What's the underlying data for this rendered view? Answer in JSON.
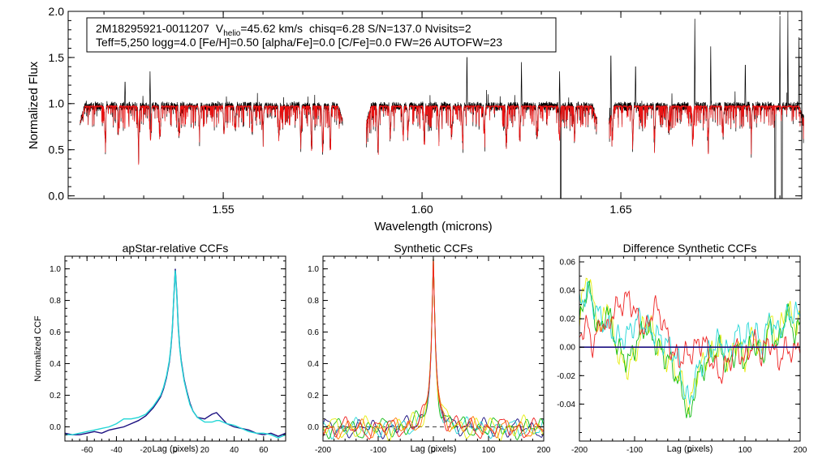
{
  "colors": {
    "axis": "#000000",
    "observed": "#000000",
    "model": "#ee1111",
    "ccf_navy": "#1a0f80",
    "ccf_cyan": "#22d6d6",
    "ccf_green": "#11bb11",
    "ccf_yellow": "#e6ee11",
    "ccf_orange": "#ff7a00",
    "ccf_red": "#ee2222",
    "zero_line": "#444444"
  },
  "spectrum": {
    "info_line1_parts": {
      "star_id": "2M18295921-0011207",
      "vhelio_label": "V",
      "vhelio_sub": "helio",
      "vhelio_value": "=45.62 km/s",
      "rest": "chisq=6.28  S/N=137.0  Nvisits=2"
    },
    "info_line2": "Teff=5,250 logg=4.0 [Fe/H]=0.50 [alpha/Fe]=0.0 [C/Fe]=0.0 FW=26 AUTOFW=23"
  },
  "chart_data": [
    {
      "id": "spectrum",
      "type": "line",
      "title": "",
      "xlabel": "Wavelength (microns)",
      "ylabel": "Normalized Flux",
      "xlim": [
        1.511,
        1.6955
      ],
      "ylim": [
        -0.03,
        2.0
      ],
      "xticks": [
        1.55,
        1.6,
        1.65
      ],
      "xtick_labels": [
        "1.55",
        "1.60",
        "1.65"
      ],
      "yticks": [
        0.0,
        0.5,
        1.0,
        1.5,
        2.0
      ],
      "ytick_labels": [
        "0.0",
        "0.5",
        "1.0",
        "1.5",
        "2.0"
      ],
      "chips": [
        [
          1.514,
          1.58
        ],
        [
          1.586,
          1.644
        ],
        [
          1.647,
          1.696
        ]
      ],
      "series": [
        {
          "name": "observed spectrum",
          "color": "#000000",
          "baseline": 0.95
        },
        {
          "name": "best-fit model",
          "color": "#ee1111",
          "baseline": 0.95
        }
      ],
      "absorption_lines": [
        [
          1.5203,
          0.62
        ],
        [
          1.5236,
          0.75
        ],
        [
          1.5287,
          0.55
        ],
        [
          1.5317,
          0.6
        ],
        [
          1.5341,
          0.68
        ],
        [
          1.5389,
          0.64
        ],
        [
          1.544,
          0.7
        ],
        [
          1.5502,
          0.66
        ],
        [
          1.553,
          0.72
        ],
        [
          1.5573,
          0.68
        ],
        [
          1.56,
          0.73
        ],
        [
          1.564,
          0.65
        ],
        [
          1.5695,
          0.6
        ],
        [
          1.5722,
          0.5
        ],
        [
          1.575,
          0.48
        ],
        [
          1.5769,
          0.5
        ],
        [
          1.5889,
          0.5
        ],
        [
          1.592,
          0.65
        ],
        [
          1.5952,
          0.65
        ],
        [
          1.5965,
          0.7
        ],
        [
          1.6006,
          0.62
        ],
        [
          1.6042,
          0.7
        ],
        [
          1.6075,
          0.66
        ],
        [
          1.6102,
          0.6
        ],
        [
          1.6157,
          0.68
        ],
        [
          1.6212,
          0.6
        ],
        [
          1.6246,
          0.68
        ],
        [
          1.6289,
          0.63
        ],
        [
          1.6346,
          0.61
        ],
        [
          1.6384,
          0.64
        ],
        [
          1.6479,
          0.68
        ],
        [
          1.653,
          0.6
        ],
        [
          1.6585,
          0.62
        ],
        [
          1.662,
          0.7
        ],
        [
          1.6681,
          0.62
        ],
        [
          1.672,
          0.6
        ],
        [
          1.6757,
          0.64
        ],
        [
          1.6828,
          0.66
        ]
      ],
      "emission_spikes": [
        [
          1.5253,
          1.28
        ],
        [
          1.5316,
          1.35
        ],
        [
          1.6113,
          1.6
        ],
        [
          1.625,
          1.45
        ],
        [
          1.6346,
          1.35
        ],
        [
          1.6475,
          1.62
        ],
        [
          1.6537,
          1.48
        ],
        [
          1.6686,
          1.92
        ],
        [
          1.6726,
          1.62
        ],
        [
          1.6813,
          1.5
        ],
        [
          1.69,
          1.95
        ],
        [
          1.692,
          2.0
        ],
        [
          1.6948,
          1.72
        ]
      ],
      "dropouts": [
        [
          1.6349,
          -0.05
        ],
        [
          1.6888,
          -0.05
        ],
        [
          1.6905,
          -0.05
        ]
      ]
    },
    {
      "id": "apstar_ccf",
      "type": "line",
      "title": "apStar-relative CCFs",
      "xlabel": "Lag (pixels)",
      "ylabel": "Normalized CCF",
      "xlim": [
        -75,
        75
      ],
      "ylim": [
        -0.09,
        1.08
      ],
      "xticks": [
        -60,
        -40,
        -20,
        0,
        20,
        40,
        60
      ],
      "xtick_labels": [
        "-60",
        "-40",
        "-20",
        "0",
        "20",
        "40",
        "60"
      ],
      "yticks": [
        0.0,
        0.2,
        0.4,
        0.6,
        0.8,
        1.0
      ],
      "ytick_labels": [
        "0.0",
        "0.2",
        "0.4",
        "0.6",
        "0.8",
        "1.0"
      ],
      "series": [
        {
          "name": "visit 1",
          "color": "#1a0f80",
          "x": [
            -75,
            -70,
            -65,
            -60,
            -55,
            -50,
            -45,
            -40,
            -35,
            -30,
            -25,
            -20,
            -15,
            -12,
            -10,
            -8,
            -6,
            -4,
            -3,
            -2,
            -1,
            0,
            1,
            2,
            3,
            4,
            6,
            8,
            10,
            12,
            15,
            20,
            25,
            28,
            30,
            35,
            40,
            45,
            50,
            55,
            60,
            65,
            70,
            75
          ],
          "y": [
            -0.04,
            -0.05,
            -0.05,
            -0.04,
            -0.03,
            -0.04,
            -0.02,
            -0.01,
            0.0,
            0.02,
            0.04,
            0.07,
            0.12,
            0.16,
            0.19,
            0.24,
            0.31,
            0.41,
            0.5,
            0.62,
            0.82,
            1.0,
            0.85,
            0.64,
            0.51,
            0.42,
            0.3,
            0.22,
            0.15,
            0.1,
            0.06,
            0.05,
            0.08,
            0.09,
            0.07,
            0.02,
            0.0,
            -0.01,
            -0.02,
            -0.04,
            -0.05,
            -0.04,
            -0.06,
            -0.04
          ]
        },
        {
          "name": "visit 2",
          "color": "#22d6d6",
          "x": [
            -75,
            -70,
            -65,
            -60,
            -55,
            -50,
            -45,
            -40,
            -35,
            -30,
            -25,
            -20,
            -15,
            -12,
            -10,
            -8,
            -6,
            -4,
            -3,
            -2,
            -1,
            0,
            1,
            2,
            3,
            4,
            6,
            8,
            10,
            12,
            15,
            20,
            25,
            28,
            30,
            35,
            40,
            45,
            50,
            55,
            60,
            65,
            70,
            75
          ],
          "y": [
            -0.05,
            -0.05,
            -0.04,
            -0.03,
            -0.02,
            -0.01,
            0.0,
            0.02,
            0.05,
            0.05,
            0.06,
            0.08,
            0.13,
            0.17,
            0.2,
            0.25,
            0.32,
            0.42,
            0.51,
            0.63,
            0.82,
            0.99,
            0.84,
            0.63,
            0.5,
            0.41,
            0.29,
            0.21,
            0.14,
            0.1,
            0.06,
            0.03,
            0.03,
            0.04,
            0.04,
            0.02,
            0.01,
            -0.01,
            -0.03,
            -0.04,
            -0.04,
            -0.05,
            -0.07,
            -0.05
          ]
        }
      ]
    },
    {
      "id": "synthetic_ccf",
      "type": "line",
      "title": "Synthetic CCFs",
      "xlabel": "Lag (pixels)",
      "ylabel": "",
      "xlim": [
        -200,
        200
      ],
      "ylim": [
        -0.09,
        1.08
      ],
      "xticks": [
        -200,
        -100,
        0,
        100,
        200
      ],
      "xtick_labels": [
        "-200",
        "-100",
        "0",
        "100",
        "200"
      ],
      "yticks": [
        0.0,
        0.2,
        0.4,
        0.6,
        0.8,
        1.0
      ],
      "ytick_labels": [
        "0.0",
        "0.2",
        "0.4",
        "0.6",
        "0.8",
        "1.0"
      ],
      "zero_line": 0.0,
      "series": [
        {
          "name": "navy",
          "color": "#1a0f80",
          "phase": 0.0,
          "amp": 0.035
        },
        {
          "name": "cyan",
          "color": "#22d6d6",
          "phase": 1.1,
          "amp": 0.035
        },
        {
          "name": "green",
          "color": "#11bb11",
          "phase": 2.3,
          "amp": 0.04
        },
        {
          "name": "yellow",
          "color": "#e6ee11",
          "phase": 3.4,
          "amp": 0.045
        },
        {
          "name": "orange",
          "color": "#ff7a00",
          "phase": 4.6,
          "amp": 0.035
        },
        {
          "name": "red",
          "color": "#ee2222",
          "phase": 5.5,
          "amp": 0.04
        }
      ]
    },
    {
      "id": "difference_ccf",
      "type": "line",
      "title": "Difference Synthetic CCFs",
      "xlabel": "Lag (pixels)",
      "ylabel": "",
      "xlim": [
        -200,
        200
      ],
      "ylim": [
        -0.066,
        0.064
      ],
      "xticks": [
        -200,
        -100,
        0,
        100,
        200
      ],
      "xtick_labels": [
        "-200",
        "-100",
        "0",
        "100",
        "200"
      ],
      "yticks": [
        -0.04,
        -0.02,
        0.0,
        0.02,
        0.04,
        0.06
      ],
      "ytick_labels": [
        "-0.04",
        "-0.02",
        "0.00",
        "0.02",
        "0.04",
        "0.06"
      ],
      "zero_line": 0.0,
      "series": [
        {
          "name": "yellow",
          "color": "#e6ee11",
          "phase": 0.4,
          "x": [
            -200,
            -185,
            -175,
            -160,
            -150,
            -140,
            -125,
            -110,
            -95,
            -80,
            -65,
            -50,
            -35,
            -20,
            -10,
            0,
            10,
            25,
            40,
            55,
            70,
            85,
            100,
            115,
            130,
            145,
            160,
            175,
            190,
            200
          ],
          "y": [
            0.02,
            0.055,
            0.03,
            0.01,
            0.035,
            0.01,
            -0.01,
            -0.015,
            0.0,
            0.02,
            0.01,
            -0.005,
            -0.01,
            -0.02,
            -0.03,
            -0.045,
            -0.02,
            -0.01,
            -0.005,
            0.0,
            -0.01,
            0.005,
            -0.01,
            0.01,
            -0.005,
            0.02,
            0.005,
            0.03,
            0.015,
            0.02
          ]
        },
        {
          "name": "green",
          "color": "#11bb11",
          "phase": 1.6,
          "x": [
            -200,
            -185,
            -175,
            -160,
            -150,
            -140,
            -125,
            -110,
            -95,
            -80,
            -65,
            -50,
            -35,
            -20,
            -10,
            0,
            10,
            25,
            40,
            55,
            70,
            85,
            100,
            115,
            130,
            145,
            160,
            175,
            190,
            200
          ],
          "y": [
            0.015,
            0.045,
            0.025,
            0.01,
            0.03,
            0.01,
            -0.005,
            -0.01,
            0.005,
            0.015,
            0.005,
            -0.005,
            -0.01,
            -0.025,
            -0.035,
            -0.055,
            -0.025,
            -0.015,
            -0.005,
            0.0,
            -0.015,
            0.0,
            -0.01,
            0.005,
            -0.01,
            0.015,
            0.0,
            0.025,
            0.01,
            0.015
          ]
        },
        {
          "name": "cyan",
          "color": "#22d6d6",
          "phase": 2.7,
          "x": [
            -200,
            -185,
            -175,
            -160,
            -150,
            -140,
            -125,
            -110,
            -95,
            -80,
            -65,
            -50,
            -35,
            -20,
            -10,
            0,
            10,
            25,
            40,
            55,
            70,
            85,
            100,
            115,
            130,
            145,
            160,
            175,
            190,
            200
          ],
          "y": [
            0.03,
            0.04,
            0.03,
            0.02,
            0.015,
            0.01,
            0.005,
            0.01,
            0.02,
            0.015,
            0.01,
            0.005,
            0.0,
            -0.01,
            -0.03,
            -0.04,
            -0.02,
            -0.01,
            0.0,
            0.005,
            -0.005,
            0.01,
            0.005,
            0.015,
            0.0,
            0.02,
            0.01,
            0.02,
            0.025,
            0.02
          ]
        },
        {
          "name": "red",
          "color": "#ee2222",
          "phase": 3.9,
          "x": [
            -200,
            -185,
            -175,
            -160,
            -150,
            -140,
            -125,
            -110,
            -95,
            -80,
            -65,
            -50,
            -35,
            -20,
            -10,
            0,
            10,
            25,
            40,
            55,
            70,
            85,
            100,
            115,
            130,
            145,
            160,
            175,
            190,
            200
          ],
          "y": [
            0.01,
            0.015,
            0.0,
            0.02,
            0.01,
            0.025,
            0.03,
            0.035,
            0.02,
            0.01,
            0.03,
            0.02,
            0.0,
            -0.01,
            -0.005,
            -0.005,
            0.0,
            0.005,
            -0.01,
            -0.02,
            -0.01,
            0.0,
            -0.01,
            0.005,
            -0.005,
            0.005,
            -0.01,
            0.0,
            -0.005,
            0.005
          ]
        },
        {
          "name": "navy",
          "color": "#1a0f80",
          "phase": 5.0,
          "x": [
            -200,
            -100,
            0,
            100,
            200
          ],
          "y": [
            0.0,
            0.0,
            0.0,
            0.0,
            0.0
          ]
        }
      ]
    }
  ]
}
